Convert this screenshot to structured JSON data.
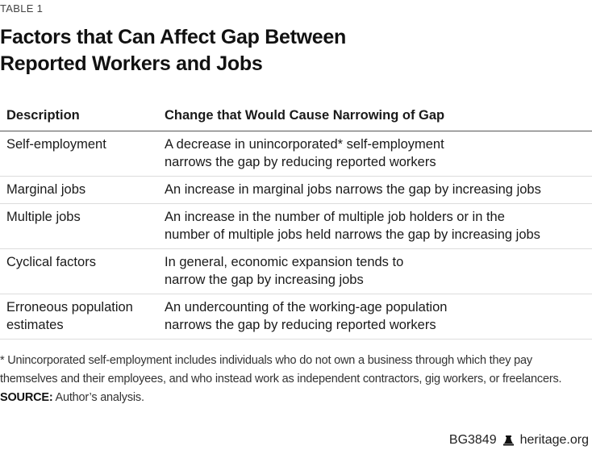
{
  "table_label": "TABLE 1",
  "title_lines": [
    "Factors that Can Affect Gap Between",
    "Reported Workers and Jobs"
  ],
  "columns": [
    "Description",
    "Change that Would Cause Narrowing of Gap"
  ],
  "rows": [
    {
      "description": [
        "Self-employment"
      ],
      "change": [
        "A decrease in unincorporated* self-employment",
        "narrows the gap by reducing reported workers"
      ]
    },
    {
      "description": [
        "Marginal jobs"
      ],
      "change": [
        "An increase in marginal jobs narrows the gap by increasing jobs"
      ]
    },
    {
      "description": [
        "Multiple jobs"
      ],
      "change": [
        "An increase in the number of multiple job holders or in the",
        "number of multiple jobs held narrows the gap by increasing jobs"
      ]
    },
    {
      "description": [
        "Cyclical factors"
      ],
      "change": [
        "In general, economic expansion tends to",
        "narrow the gap by increasing jobs"
      ]
    },
    {
      "description": [
        "Erroneous population",
        "estimates"
      ],
      "change": [
        "An undercounting of the working-age population",
        "narrows the gap by reducing reported workers"
      ]
    }
  ],
  "footnote_lines": [
    "* Unincorporated self-employment includes individuals who do not own a business through which they pay",
    "themselves and their employees, and who instead work as independent contractors, gig workers, or freelancers."
  ],
  "source": {
    "label": "SOURCE:",
    "text": " Author’s analysis."
  },
  "footer": {
    "code": "BG3849",
    "icon": "liberty-bell-icon",
    "site": "heritage.org"
  }
}
